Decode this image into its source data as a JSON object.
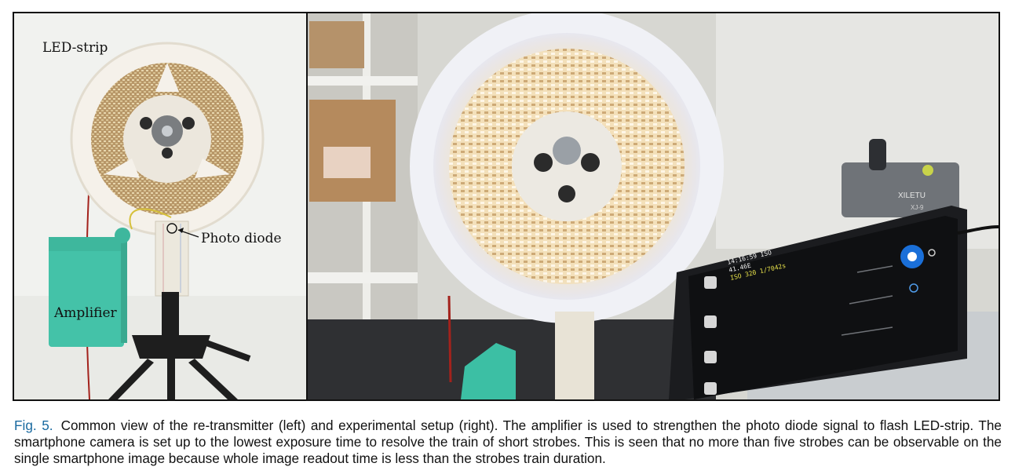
{
  "figure": {
    "labels": {
      "led_strip": "LED-strip",
      "photo_diode": "Photo diode",
      "amplifier": "Amplifier"
    },
    "phone_screen": {
      "line1": "14:16:59 ISO",
      "line2": "41.46E",
      "line3": "ISO 320 1/7042s"
    },
    "bracket_brand": "XILETU",
    "bracket_model": "XJ-9"
  },
  "caption": {
    "number": "Fig. 5.",
    "text": "Common view of the re-transmitter (left) and experimental setup (right). The amplifier is used to strengthen the photo diode signal to flash LED-strip. The smartphone camera is set up to the lowest exposure time to resolve the train of short strobes. This is seen that no more than five strobes can be observable on the single smartphone image because whole image readout time is less than the strobes train duration."
  }
}
